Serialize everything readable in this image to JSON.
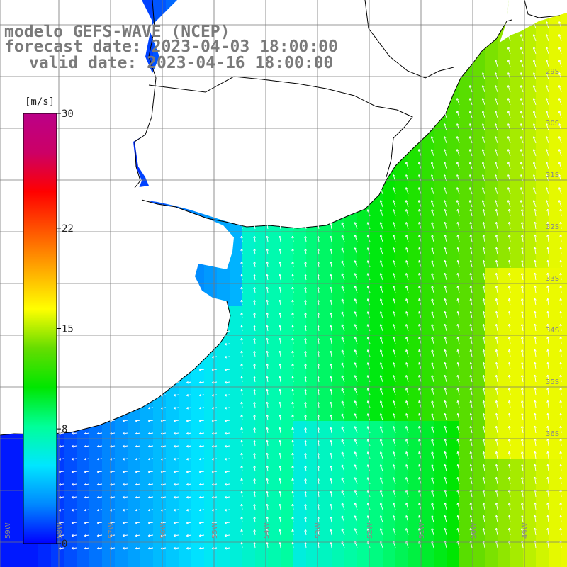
{
  "title": {
    "line1": "modelo GEFS-WAVE (NCEP)",
    "line2": "forecast date: 2023-04-03 18:00:00",
    "line3": "valid date: 2023-04-16 18:00:00"
  },
  "colorbar": {
    "unit": "[m/s]",
    "ticks": [
      {
        "value": 30,
        "label": "30"
      },
      {
        "value": 22,
        "label": "22"
      },
      {
        "value": 15,
        "label": "15"
      },
      {
        "value": 8,
        "label": "8"
      },
      {
        "value": 0,
        "label": "0"
      }
    ],
    "range": [
      0,
      30
    ],
    "colors": [
      "#0000ff",
      "#0088ff",
      "#00e6ff",
      "#00ff99",
      "#00e600",
      "#66dd00",
      "#ffff00",
      "#ffaa00",
      "#ff5500",
      "#ff0000",
      "#cc0066",
      "#bb0088"
    ]
  },
  "map": {
    "grid": true,
    "land_color": "#ffffff",
    "coast_color": "#000000",
    "lon_labels": [
      "59W",
      "58W",
      "57W",
      "56W",
      "55W",
      "54W",
      "53W",
      "52W",
      "51W",
      "50W",
      "49W"
    ],
    "lat_labels": [
      "29S",
      "30S",
      "31S",
      "32S",
      "33S",
      "34S",
      "35S",
      "36S"
    ],
    "arrow_color": "#ffffff"
  }
}
